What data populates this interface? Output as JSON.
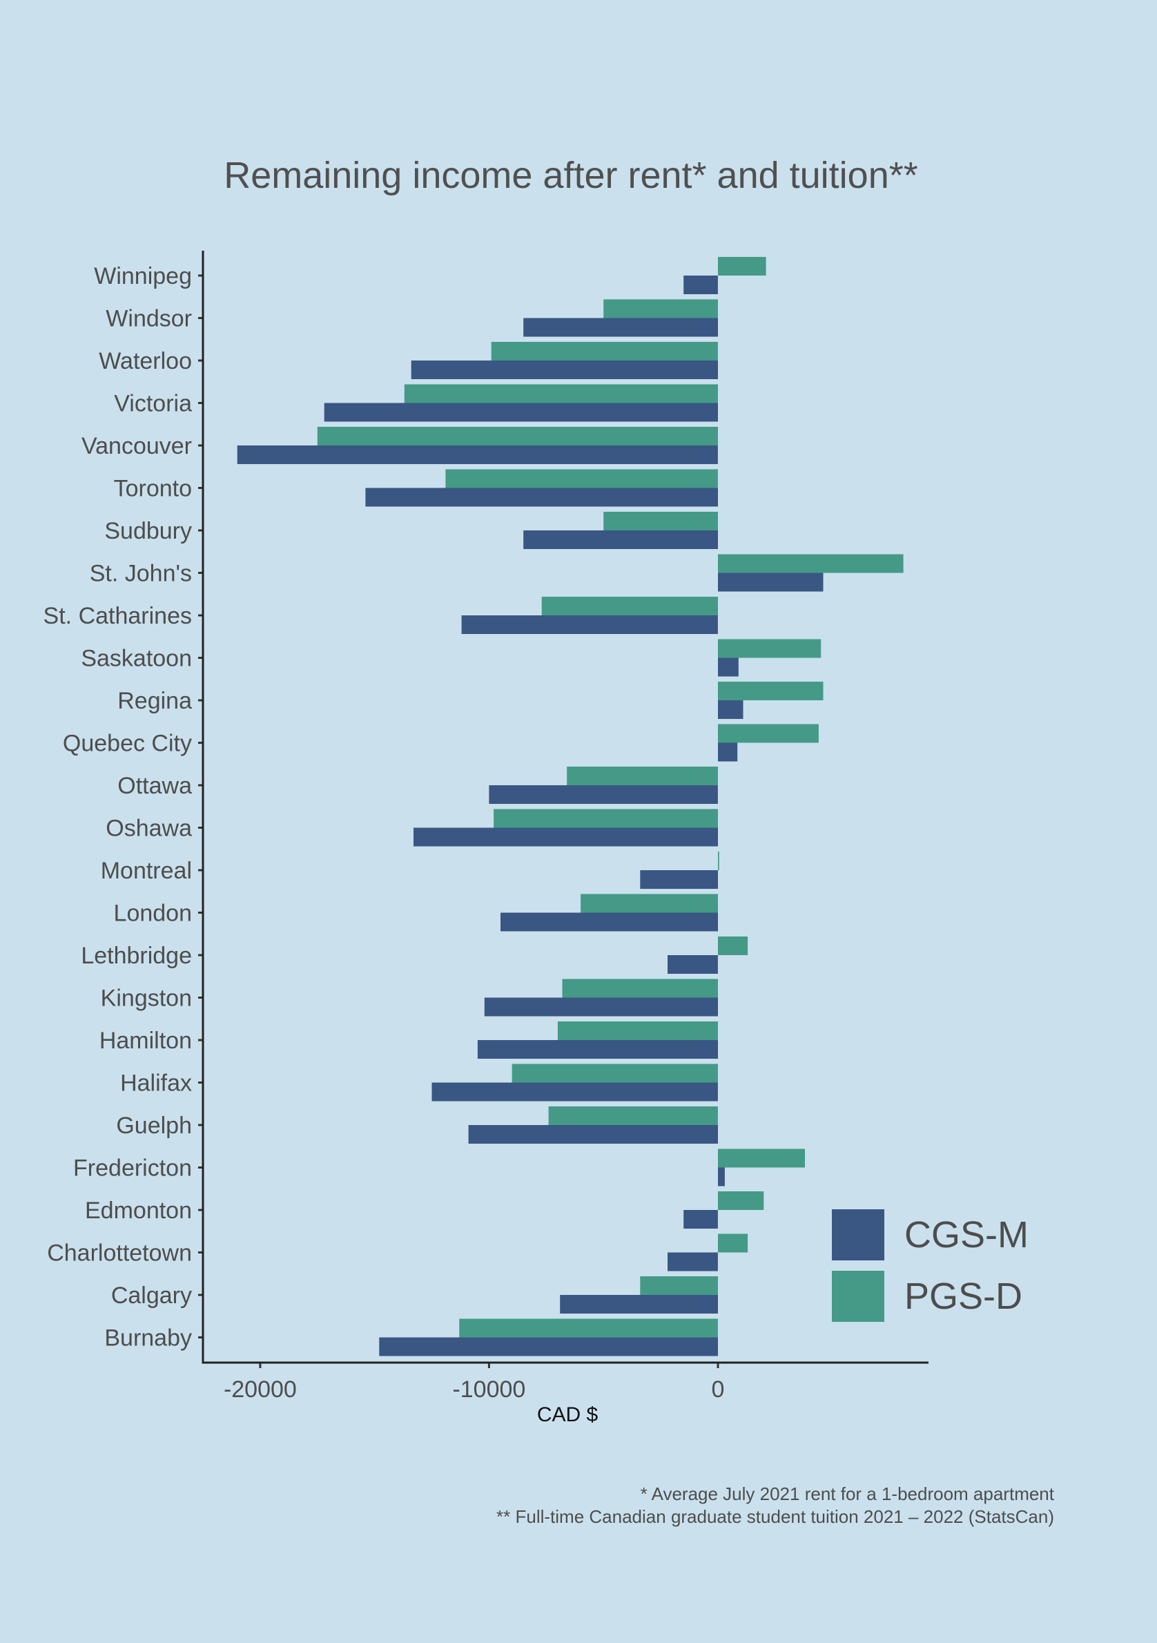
{
  "chart_data": {
    "type": "bar",
    "orientation": "horizontal",
    "title": "Remaining income after rent* and tuition**",
    "xlabel": "CAD $",
    "ylabel": "",
    "xlim": [
      -22500,
      9200
    ],
    "xticks": [
      -20000,
      -10000,
      0
    ],
    "xtick_labels": [
      "-20000",
      "-10000",
      "0"
    ],
    "grid": false,
    "legend_position": "bottom-right",
    "categories": [
      "Winnipeg",
      "Windsor",
      "Waterloo",
      "Victoria",
      "Vancouver",
      "Toronto",
      "Sudbury",
      "St. John's",
      "St. Catharines",
      "Saskatoon",
      "Regina",
      "Quebec City",
      "Ottawa",
      "Oshawa",
      "Montreal",
      "London",
      "Lethbridge",
      "Kingston",
      "Hamilton",
      "Halifax",
      "Guelph",
      "Fredericton",
      "Edmonton",
      "Charlottetown",
      "Calgary",
      "Burnaby"
    ],
    "series": [
      {
        "name": "CGS-M",
        "color": "#3a5683",
        "values": [
          -1500,
          -8500,
          -13400,
          -17200,
          -21000,
          -15400,
          -8500,
          4600,
          -11200,
          900,
          1100,
          850,
          -10000,
          -13300,
          -3400,
          -9500,
          -2200,
          -10200,
          -10500,
          -12500,
          -10900,
          300,
          -1500,
          -2200,
          -6900,
          -14800
        ]
      },
      {
        "name": "PGS-D",
        "color": "#449a87",
        "values": [
          2100,
          -5000,
          -9900,
          -13700,
          -17500,
          -11900,
          -5000,
          8100,
          -7700,
          4500,
          4600,
          4400,
          -6600,
          -9800,
          50,
          -6000,
          1300,
          -6800,
          -7000,
          -9000,
          -7400,
          3800,
          2000,
          1300,
          -3400,
          -11300
        ]
      }
    ],
    "notes": [
      "* Average July 2021 rent for a 1-bedroom apartment",
      "** Full-time Canadian graduate student tuition 2021 – 2022 (StatsCan)"
    ]
  }
}
